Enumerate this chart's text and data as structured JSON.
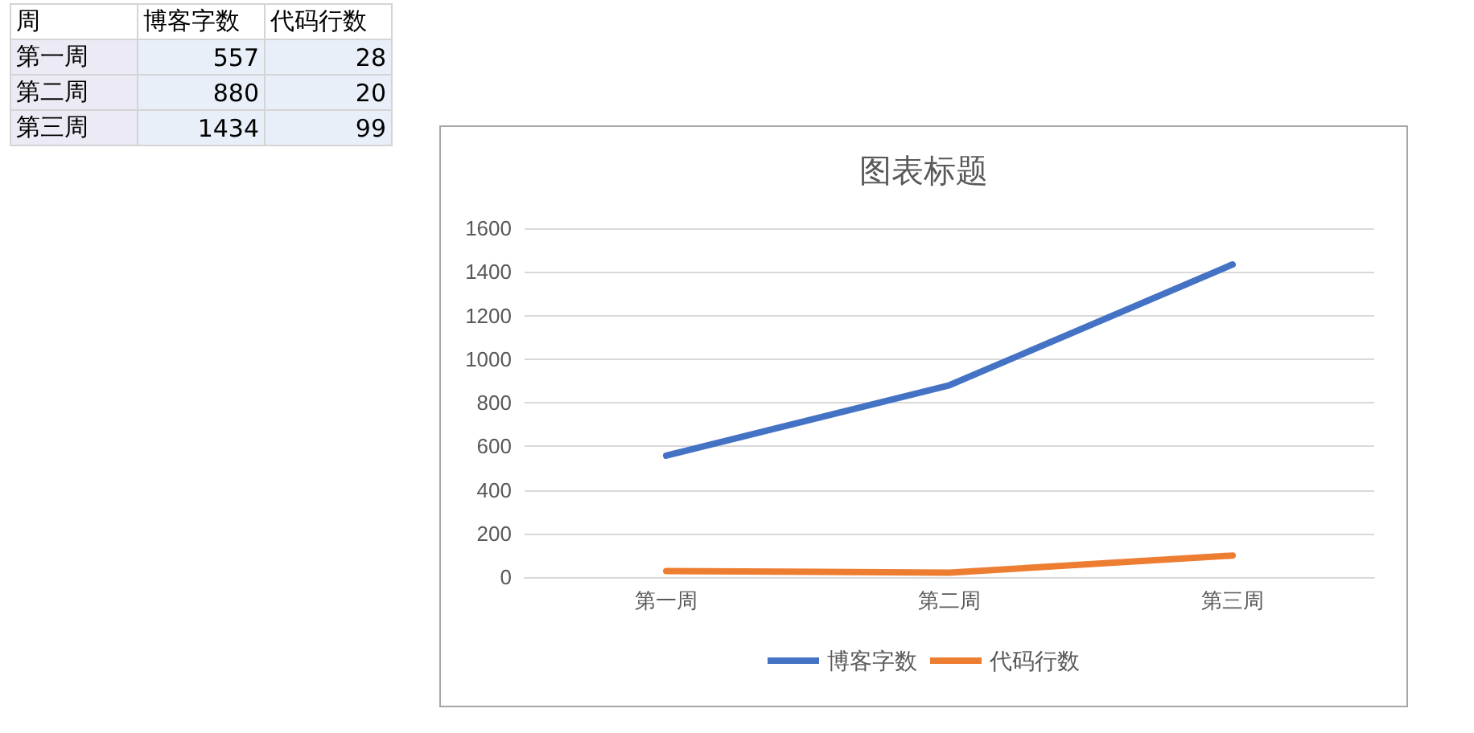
{
  "chart_data": [
    {
      "type": "other",
      "annotations": [
        "周"
      ],
      "categories": [
        "第一周",
        "第二周",
        "第三周"
      ],
      "series": [
        {
          "name": "博客字数",
          "values": [
            557,
            880,
            1434
          ]
        },
        {
          "name": "代码行数",
          "values": [
            28,
            20,
            99
          ]
        }
      ],
      "data_labels": true
    },
    {
      "type": "line",
      "title": "图表标题",
      "categories": [
        "第一周",
        "第二周",
        "第三周"
      ],
      "series": [
        {
          "name": "博客字数",
          "color": "#4472c4",
          "values": [
            557,
            880,
            1434
          ]
        },
        {
          "name": "代码行数",
          "color": "#ed7d31",
          "values": [
            28,
            20,
            99
          ]
        }
      ],
      "ylim": [
        0,
        1600
      ],
      "yticks": [
        0,
        200,
        400,
        600,
        800,
        {
          "value": 1000,
          "label": "1000"
        },
        {
          "value": 1200,
          "label": "1200"
        },
        {
          "value": 1400,
          "label": "1400"
        },
        {
          "value": 1600,
          "label": "1600"
        }
      ],
      "grid": "y",
      "legend": "bottom",
      "marker": "none",
      "line_style": "solid"
    }
  ]
}
